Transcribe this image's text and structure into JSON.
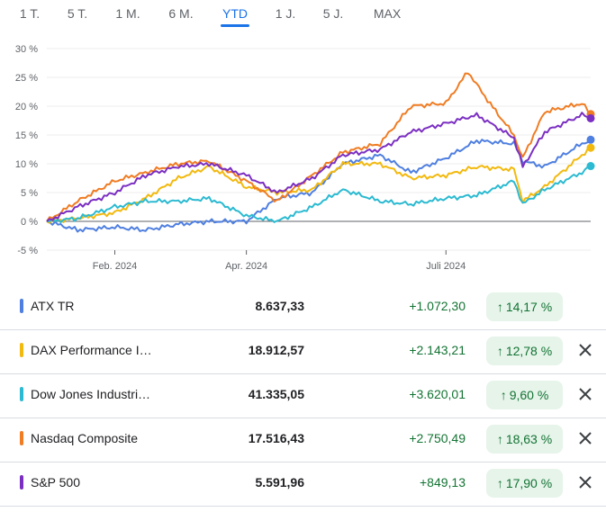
{
  "tabs": [
    {
      "label": "1 T.",
      "active": false
    },
    {
      "label": "5 T.",
      "active": false
    },
    {
      "label": "1 M.",
      "active": false
    },
    {
      "label": "6 M.",
      "active": false
    },
    {
      "label": "YTD",
      "active": true
    },
    {
      "label": "1 J.",
      "active": false
    },
    {
      "label": "5 J.",
      "active": false
    },
    {
      "label": "MAX",
      "active": false
    }
  ],
  "chart_data": {
    "type": "line",
    "y_ticks": [
      "30 %",
      "25 %",
      "20 %",
      "15 %",
      "10 %",
      "5 %",
      "0 %",
      "-5 %"
    ],
    "y_tick_values": [
      30,
      25,
      20,
      15,
      10,
      5,
      0,
      -5
    ],
    "ylim": [
      -5,
      30
    ],
    "x_ticks": [
      "Feb. 2024",
      "Apr. 2024",
      "Juli 2024"
    ],
    "x_tick_values": [
      "2024-02-01",
      "2024-04-01",
      "2024-07-01"
    ],
    "xlim": [
      "2024-01-01",
      "2024-09-05"
    ],
    "grid": true,
    "series": [
      {
        "name": "ATX TR",
        "color": "#4f7fe0",
        "x": [
          "2024-01-01",
          "2024-01-15",
          "2024-02-01",
          "2024-02-15",
          "2024-03-01",
          "2024-03-15",
          "2024-04-01",
          "2024-04-15",
          "2024-05-01",
          "2024-05-15",
          "2024-06-01",
          "2024-06-15",
          "2024-07-01",
          "2024-07-15",
          "2024-08-01",
          "2024-08-05",
          "2024-08-15",
          "2024-09-01",
          "2024-09-05"
        ],
        "y": [
          0,
          -1.5,
          -1,
          -1.5,
          -0.5,
          0,
          0,
          4,
          5,
          10,
          11.5,
          8.5,
          11,
          14,
          13.5,
          10.5,
          9.5,
          13.5,
          14.17
        ]
      },
      {
        "name": "DAX Performance I…",
        "color": "#f2b90f",
        "x": [
          "2024-01-01",
          "2024-01-15",
          "2024-02-01",
          "2024-02-15",
          "2024-03-01",
          "2024-03-15",
          "2024-04-01",
          "2024-04-15",
          "2024-05-01",
          "2024-05-15",
          "2024-06-01",
          "2024-06-15",
          "2024-07-01",
          "2024-07-15",
          "2024-08-01",
          "2024-08-05",
          "2024-08-15",
          "2024-09-01",
          "2024-09-05"
        ],
        "y": [
          0,
          0.5,
          1.5,
          4,
          7.5,
          9.5,
          6,
          5,
          5.5,
          10,
          10,
          7.5,
          8,
          9.5,
          9,
          3.5,
          6,
          11.5,
          12.78
        ]
      },
      {
        "name": "Dow Jones Industri…",
        "color": "#2bbad1",
        "x": [
          "2024-01-01",
          "2024-01-15",
          "2024-02-01",
          "2024-02-15",
          "2024-03-01",
          "2024-03-15",
          "2024-04-01",
          "2024-04-15",
          "2024-05-01",
          "2024-05-15",
          "2024-06-01",
          "2024-06-15",
          "2024-07-01",
          "2024-07-15",
          "2024-08-01",
          "2024-08-05",
          "2024-08-15",
          "2024-09-01",
          "2024-09-05"
        ],
        "y": [
          0,
          0.5,
          2.5,
          3.5,
          3.5,
          4,
          1,
          0,
          2.5,
          5.5,
          3.5,
          3,
          4,
          4.5,
          7,
          3,
          5.5,
          8.5,
          9.6
        ]
      },
      {
        "name": "Nasdaq Composite",
        "color": "#f07c23",
        "x": [
          "2024-01-01",
          "2024-01-15",
          "2024-02-01",
          "2024-02-15",
          "2024-03-01",
          "2024-03-15",
          "2024-04-01",
          "2024-04-15",
          "2024-05-01",
          "2024-05-15",
          "2024-06-01",
          "2024-06-15",
          "2024-07-01",
          "2024-07-11",
          "2024-07-20",
          "2024-08-01",
          "2024-08-05",
          "2024-08-15",
          "2024-09-01",
          "2024-09-05"
        ],
        "y": [
          0,
          3.5,
          7,
          8.5,
          10,
          10.5,
          7,
          3.5,
          8,
          12,
          13.5,
          20,
          20.5,
          26,
          21,
          15,
          11,
          19,
          20.5,
          18.63
        ]
      },
      {
        "name": "S&P 500",
        "color": "#7b2fc2",
        "x": [
          "2024-01-01",
          "2024-01-15",
          "2024-02-01",
          "2024-02-15",
          "2024-03-01",
          "2024-03-15",
          "2024-04-01",
          "2024-04-15",
          "2024-05-01",
          "2024-05-15",
          "2024-06-01",
          "2024-06-15",
          "2024-07-01",
          "2024-07-15",
          "2024-08-01",
          "2024-08-05",
          "2024-08-15",
          "2024-09-01",
          "2024-09-05"
        ],
        "y": [
          0,
          2.5,
          5,
          8,
          9.5,
          10,
          8,
          5,
          7.5,
          11.5,
          12.5,
          15.5,
          17,
          18.5,
          14.5,
          9.5,
          15.5,
          18.5,
          17.9
        ]
      }
    ]
  },
  "rows": [
    {
      "name": "ATX TR",
      "color": "#4f7fe0",
      "price": "8.637,33",
      "change": "+1.072,30",
      "pct": "14,17 %",
      "arrow": "↑",
      "removable": false
    },
    {
      "name": "DAX Performance I…",
      "color": "#f2b90f",
      "price": "18.912,57",
      "change": "+2.143,21",
      "pct": "12,78 %",
      "arrow": "↑",
      "removable": true
    },
    {
      "name": "Dow Jones Industri…",
      "color": "#2bbad1",
      "price": "41.335,05",
      "change": "+3.620,01",
      "pct": "9,60 %",
      "arrow": "↑",
      "removable": true
    },
    {
      "name": "Nasdaq Composite",
      "color": "#f07c23",
      "price": "17.516,43",
      "change": "+2.750,49",
      "pct": "18,63 %",
      "arrow": "↑",
      "removable": true
    },
    {
      "name": "S&P 500",
      "color": "#7b2fc2",
      "price": "5.591,96",
      "change": "+849,13",
      "pct": "17,90 %",
      "arrow": "↑",
      "removable": true
    }
  ]
}
